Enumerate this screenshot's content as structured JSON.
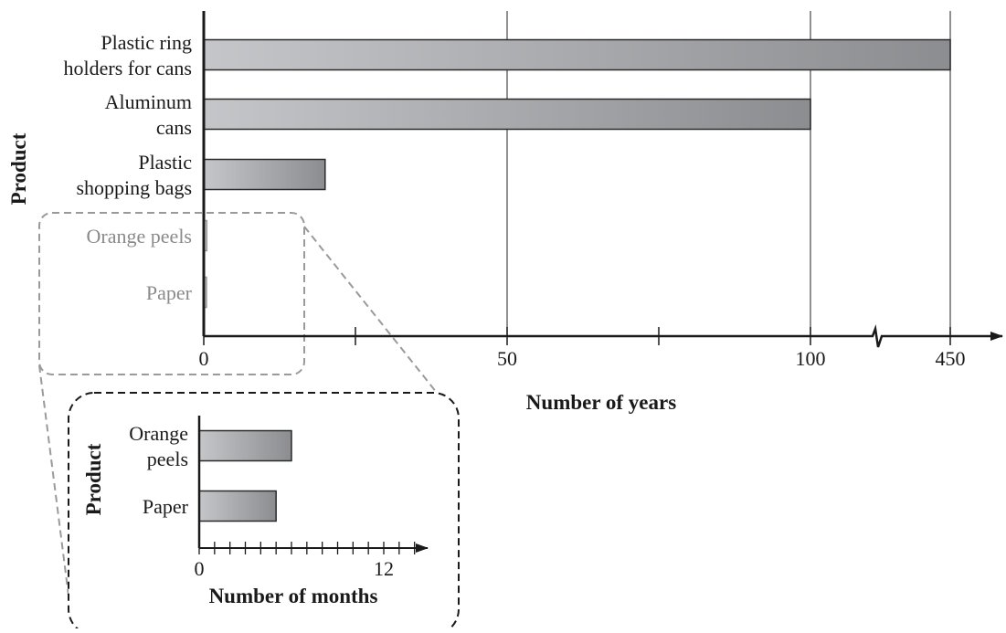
{
  "chart_data": [
    {
      "type": "bar",
      "orientation": "horizontal",
      "categories": [
        "Plastic ring holders for cans",
        "Aluminum cans",
        "Plastic shopping bags",
        "Orange peels",
        "Paper"
      ],
      "category_lines": [
        [
          "Plastic ring",
          "holders for cans"
        ],
        [
          "Aluminum",
          "cans"
        ],
        [
          "Plastic",
          "shopping bags"
        ],
        [
          "Orange peels"
        ],
        [
          "Paper"
        ]
      ],
      "values": [
        450,
        100,
        20,
        0.5,
        0.4
      ],
      "xlabel": "Number of years",
      "ylabel": "Product",
      "x_ticks": [
        "0",
        "50",
        "100",
        "450"
      ],
      "axis_break": "between 100 and 450",
      "grid": "vertical lines at 50, 100, 450",
      "faded_categories": [
        "Orange peels",
        "Paper"
      ]
    },
    {
      "type": "bar",
      "orientation": "horizontal",
      "role": "zoomed inset of Orange peels and Paper",
      "categories": [
        "Orange peels",
        "Paper"
      ],
      "category_lines": [
        [
          "Orange",
          "peels"
        ],
        [
          "Paper"
        ]
      ],
      "values": [
        6,
        5
      ],
      "xlabel": "Number of months",
      "ylabel": "Product",
      "x_ticks": [
        "0",
        "12"
      ],
      "xlim": [
        0,
        15
      ]
    }
  ],
  "colors": {
    "bar_light": "#c4c6c9",
    "bar_dark": "#8c8d90",
    "axis": "#1a1a1a",
    "grid": "#555555",
    "faded": "#9a9a9a"
  }
}
